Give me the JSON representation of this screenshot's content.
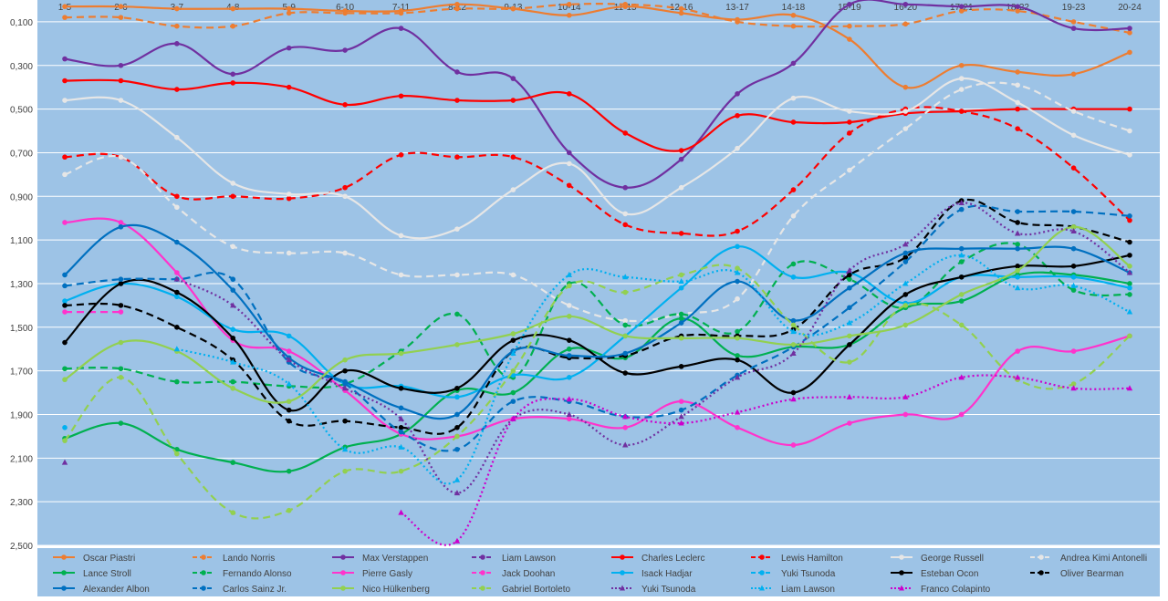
{
  "chart_data": {
    "type": "line",
    "title": "",
    "xlabel": "",
    "ylabel": "",
    "categories": [
      "1-5",
      "2-6",
      "3-7",
      "4-8",
      "5-9",
      "6-10",
      "7-11",
      "8-12",
      "9-13",
      "10-14",
      "11-15",
      "12-16",
      "13-17",
      "14-18",
      "15-19",
      "16-20",
      "17-21",
      "18-22",
      "19-23",
      "20-24"
    ],
    "ylim": [
      0,
      2.5
    ],
    "y_inverted": true,
    "y_ticks": [
      {
        "value": 0.1,
        "label": "0,100"
      },
      {
        "value": 0.3,
        "label": "0,300"
      },
      {
        "value": 0.5,
        "label": "0,500"
      },
      {
        "value": 0.7,
        "label": "0,700"
      },
      {
        "value": 0.9,
        "label": "0,900"
      },
      {
        "value": 1.1,
        "label": "1,100"
      },
      {
        "value": 1.3,
        "label": "1,300"
      },
      {
        "value": 1.5,
        "label": "1,500"
      },
      {
        "value": 1.7,
        "label": "1,700"
      },
      {
        "value": 1.9,
        "label": "1,900"
      },
      {
        "value": 2.1,
        "label": "2,100"
      },
      {
        "value": 2.3,
        "label": "2,300"
      },
      {
        "value": 2.5,
        "label": "2,500"
      }
    ],
    "grid": true,
    "legend_position": "bottom",
    "series": [
      {
        "name": "Oscar Piastri",
        "color": "#ed7d31",
        "dash": "solid",
        "marker": "circle",
        "values": [
          0.03,
          0.03,
          0.04,
          0.04,
          0.04,
          0.05,
          0.05,
          0.02,
          0.04,
          0.07,
          0.03,
          0.06,
          0.09,
          0.07,
          0.18,
          0.4,
          0.3,
          0.33,
          0.34,
          0.24
        ]
      },
      {
        "name": "Lando Norris",
        "color": "#ed7d31",
        "dash": "dash",
        "marker": "circle",
        "values": [
          0.08,
          0.08,
          0.12,
          0.12,
          0.06,
          0.06,
          0.06,
          0.04,
          0.04,
          0.02,
          0.02,
          0.04,
          0.1,
          0.12,
          0.12,
          0.11,
          0.05,
          0.05,
          0.1,
          0.15
        ]
      },
      {
        "name": "Max Verstappen",
        "color": "#7030a0",
        "dash": "solid",
        "marker": "circle",
        "values": [
          0.27,
          0.3,
          0.2,
          0.34,
          0.22,
          0.23,
          0.13,
          0.33,
          0.36,
          0.7,
          0.86,
          0.73,
          0.43,
          0.29,
          0.02,
          0.02,
          0.03,
          0.03,
          0.13,
          0.13
        ]
      },
      {
        "name": "Liam Lawson",
        "color": "#7030a0",
        "dash": "dash",
        "marker": "circle",
        "values": [
          null,
          null,
          null,
          null,
          null,
          null,
          null,
          null,
          null,
          null,
          null,
          null,
          null,
          null,
          null,
          null,
          null,
          null,
          null,
          null
        ]
      },
      {
        "name": "Charles Leclerc",
        "color": "#ff0000",
        "dash": "solid",
        "marker": "circle",
        "values": [
          0.37,
          0.37,
          0.41,
          0.38,
          0.4,
          0.48,
          0.44,
          0.46,
          0.46,
          0.43,
          0.61,
          0.69,
          0.53,
          0.56,
          0.56,
          0.52,
          0.51,
          0.5,
          0.5,
          0.5
        ]
      },
      {
        "name": "Lewis Hamilton",
        "color": "#ff0000",
        "dash": "dash",
        "marker": "circle",
        "values": [
          0.72,
          0.72,
          0.9,
          0.9,
          0.91,
          0.86,
          0.71,
          0.72,
          0.72,
          0.85,
          1.03,
          1.07,
          1.06,
          0.87,
          0.61,
          0.5,
          0.51,
          0.59,
          0.77,
          1.01
        ]
      },
      {
        "name": "George Russell",
        "color": "#e6e6e6",
        "dash": "solid",
        "marker": "circle",
        "values": [
          0.46,
          0.46,
          0.63,
          0.84,
          0.89,
          0.9,
          1.08,
          1.05,
          0.87,
          0.75,
          0.98,
          0.86,
          0.68,
          0.45,
          0.51,
          0.51,
          0.36,
          0.47,
          0.62,
          0.71
        ]
      },
      {
        "name": "Andrea Kimi Antonelli",
        "color": "#e6e6e6",
        "dash": "dash",
        "marker": "circle",
        "values": [
          0.8,
          0.72,
          0.95,
          1.13,
          1.16,
          1.16,
          1.26,
          1.26,
          1.26,
          1.4,
          1.47,
          1.44,
          1.37,
          0.99,
          0.78,
          0.59,
          0.41,
          0.39,
          0.51,
          0.6
        ]
      },
      {
        "name": "Lance Stroll",
        "color": "#00b050",
        "dash": "solid",
        "marker": "circle",
        "values": [
          2.01,
          1.94,
          2.06,
          2.12,
          2.16,
          2.05,
          1.99,
          1.79,
          1.8,
          1.6,
          1.64,
          1.46,
          1.63,
          1.59,
          1.58,
          1.41,
          1.38,
          1.26,
          1.26,
          1.3
        ]
      },
      {
        "name": "Fernando Alonso",
        "color": "#00b050",
        "dash": "dash",
        "marker": "circle",
        "values": [
          1.69,
          1.69,
          1.75,
          1.75,
          1.77,
          1.76,
          1.61,
          1.44,
          1.73,
          1.3,
          1.49,
          1.44,
          1.52,
          1.21,
          1.28,
          1.41,
          1.2,
          1.12,
          1.33,
          1.35
        ]
      },
      {
        "name": "Pierre Gasly",
        "color": "#ff33cc",
        "dash": "solid",
        "marker": "circle",
        "values": [
          1.02,
          1.02,
          1.25,
          1.56,
          1.61,
          1.79,
          1.99,
          2.0,
          1.92,
          1.92,
          1.96,
          1.84,
          1.96,
          2.04,
          1.94,
          1.9,
          1.9,
          1.61,
          1.61,
          1.54
        ]
      },
      {
        "name": "Jack Doohan",
        "color": "#ff33cc",
        "dash": "dash",
        "marker": "circle",
        "values": [
          1.43,
          1.43,
          null,
          null,
          null,
          null,
          null,
          null,
          null,
          null,
          null,
          null,
          null,
          null,
          null,
          null,
          null,
          null,
          null,
          null
        ]
      },
      {
        "name": "Isack Hadjar",
        "color": "#00b0f0",
        "dash": "solid",
        "marker": "circle",
        "values": [
          1.38,
          1.3,
          1.36,
          1.51,
          1.54,
          1.76,
          1.77,
          1.82,
          1.72,
          1.73,
          1.54,
          1.32,
          1.13,
          1.27,
          1.25,
          1.39,
          1.27,
          1.27,
          1.27,
          1.32
        ]
      },
      {
        "name": "Yuki Tsunoda",
        "color": "#00b0f0",
        "dash": "dash",
        "marker": "circle",
        "values": [
          1.96,
          null,
          null,
          null,
          null,
          null,
          null,
          null,
          null,
          null,
          null,
          null,
          null,
          null,
          null,
          null,
          null,
          null,
          null,
          null
        ]
      },
      {
        "name": "Esteban Ocon",
        "color": "#000000",
        "dash": "solid",
        "marker": "circle",
        "values": [
          1.57,
          1.3,
          1.34,
          1.55,
          1.88,
          1.7,
          1.78,
          1.78,
          1.56,
          1.56,
          1.71,
          1.68,
          1.65,
          1.8,
          1.58,
          1.35,
          1.27,
          1.22,
          1.22,
          1.17
        ]
      },
      {
        "name": "Oliver Bearman",
        "color": "#000000",
        "dash": "dash",
        "marker": "circle",
        "values": [
          1.4,
          1.4,
          1.5,
          1.65,
          1.93,
          1.93,
          1.96,
          1.96,
          1.61,
          1.64,
          1.63,
          1.54,
          1.54,
          1.51,
          1.26,
          1.18,
          0.92,
          1.02,
          1.04,
          1.11
        ]
      },
      {
        "name": "Alexander Albon",
        "color": "#0070c0",
        "dash": "solid",
        "marker": "circle",
        "values": [
          1.26,
          1.04,
          1.11,
          1.33,
          1.64,
          1.75,
          1.87,
          1.9,
          1.61,
          1.63,
          1.62,
          1.48,
          1.29,
          1.47,
          1.32,
          1.16,
          1.14,
          1.14,
          1.14,
          1.25
        ]
      },
      {
        "name": "Carlos Sainz Jr.",
        "color": "#0070c0",
        "dash": "dash",
        "marker": "circle",
        "values": [
          1.31,
          1.28,
          1.28,
          1.28,
          1.66,
          1.76,
          1.98,
          2.06,
          1.84,
          1.84,
          1.91,
          1.88,
          1.72,
          1.59,
          1.41,
          1.2,
          0.96,
          0.97,
          0.97,
          0.99
        ]
      },
      {
        "name": "Nico Hülkenberg",
        "color": "#92d050",
        "dash": "solid",
        "marker": "circle",
        "values": [
          1.74,
          1.57,
          1.61,
          1.78,
          1.84,
          1.65,
          1.62,
          1.58,
          1.53,
          1.45,
          1.54,
          1.55,
          1.55,
          1.58,
          1.54,
          1.49,
          1.35,
          1.24,
          1.04,
          1.22
        ]
      },
      {
        "name": "Gabriel Bortoleto",
        "color": "#92d050",
        "dash": "dash",
        "marker": "circle",
        "values": [
          2.02,
          1.73,
          2.08,
          2.35,
          2.34,
          2.16,
          2.16,
          2.0,
          1.7,
          1.31,
          1.34,
          1.26,
          1.23,
          1.49,
          1.66,
          1.4,
          1.49,
          1.74,
          1.76,
          1.54
        ]
      },
      {
        "name": "Yuki Tsunoda",
        "color": "#7030a0",
        "dash": "dot",
        "marker": "triangle",
        "values": [
          2.12,
          null,
          1.28,
          1.4,
          1.65,
          1.78,
          1.92,
          2.26,
          1.92,
          1.9,
          2.04,
          1.91,
          1.73,
          1.62,
          1.24,
          1.12,
          0.93,
          1.07,
          1.06,
          1.25
        ]
      },
      {
        "name": "Liam Lawson",
        "color": "#00b0f0",
        "dash": "dot",
        "marker": "triangle",
        "values": [
          null,
          null,
          1.6,
          1.66,
          1.76,
          2.06,
          2.05,
          2.2,
          1.62,
          1.26,
          1.27,
          1.29,
          1.25,
          1.52,
          1.48,
          1.3,
          1.17,
          1.32,
          1.31,
          1.43
        ]
      },
      {
        "name": "Franco Colapinto",
        "color": "#cc00cc",
        "dash": "dot",
        "marker": "triangle",
        "values": [
          null,
          null,
          null,
          null,
          null,
          null,
          2.35,
          2.48,
          1.92,
          1.83,
          1.91,
          1.94,
          1.89,
          1.83,
          1.82,
          1.82,
          1.73,
          1.73,
          1.78,
          1.78
        ]
      }
    ]
  }
}
